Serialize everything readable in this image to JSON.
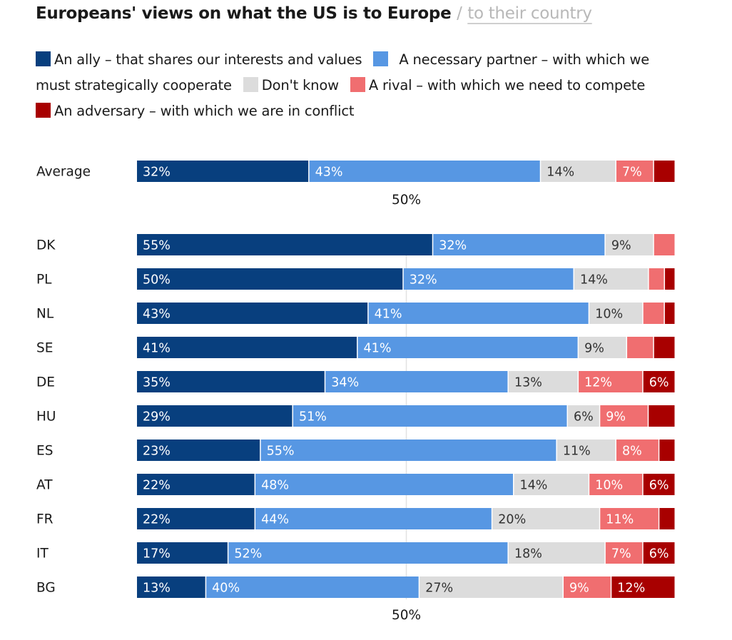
{
  "title": {
    "main": "Europeans' views on what the US is to Europe",
    "separator": "/",
    "alternate": "to their country"
  },
  "colors": {
    "ally": "#083f7e",
    "partner": "#5797e3",
    "dont_know": "#dcdcdc",
    "rival": "#f06e70",
    "adversary": "#a80000"
  },
  "chart_data": {
    "type": "bar",
    "orientation": "horizontal",
    "stacked": true,
    "title": "Europeans' views on what the US is to Europe",
    "xlim": [
      0,
      100
    ],
    "tick_label": "50%",
    "reference_value": 50,
    "value_suffix": "%",
    "categories": [
      "Average",
      "DK",
      "PL",
      "NL",
      "SE",
      "DE",
      "HU",
      "ES",
      "AT",
      "FR",
      "IT",
      "BG"
    ],
    "series": [
      {
        "name": "An ally – that shares our interests and values",
        "key": "ally",
        "values": [
          32,
          55,
          50,
          43,
          41,
          35,
          29,
          23,
          22,
          22,
          17,
          13
        ],
        "labels": [
          "32%",
          "55%",
          "50%",
          "43%",
          "41%",
          "35%",
          "29%",
          "23%",
          "22%",
          "22%",
          "17%",
          "13%"
        ]
      },
      {
        "name": "A necessary partner – with which we must strategically cooperate",
        "key": "partner",
        "values": [
          43,
          32,
          32,
          41,
          41,
          34,
          51,
          55,
          48,
          44,
          52,
          40
        ],
        "labels": [
          "43%",
          "32%",
          "32%",
          "41%",
          "41%",
          "34%",
          "51%",
          "55%",
          "48%",
          "44%",
          "52%",
          "40%"
        ]
      },
      {
        "name": "Don't know",
        "key": "dont_know",
        "values": [
          14,
          9,
          14,
          10,
          9,
          13,
          6,
          11,
          14,
          20,
          18,
          27
        ],
        "labels": [
          "14%",
          "9%",
          "14%",
          "10%",
          "9%",
          "13%",
          "6%",
          "11%",
          "14%",
          "20%",
          "18%",
          "27%"
        ]
      },
      {
        "name": "A rival – with which we need to compete",
        "key": "rival",
        "values": [
          7,
          4,
          3,
          4,
          5,
          12,
          9,
          8,
          10,
          11,
          7,
          9
        ],
        "labels": [
          "7%",
          "",
          "",
          "",
          "",
          "12%",
          "9%",
          "8%",
          "10%",
          "11%",
          "7%",
          "9%"
        ]
      },
      {
        "name": "An adversary – with which we are in conflict",
        "key": "adversary",
        "values": [
          4,
          0,
          2,
          2,
          4,
          6,
          5,
          3,
          6,
          3,
          6,
          12
        ],
        "labels": [
          "",
          "",
          "",
          "",
          "",
          "6%",
          "",
          "",
          "6%",
          "",
          "6%",
          "12%"
        ]
      }
    ]
  }
}
